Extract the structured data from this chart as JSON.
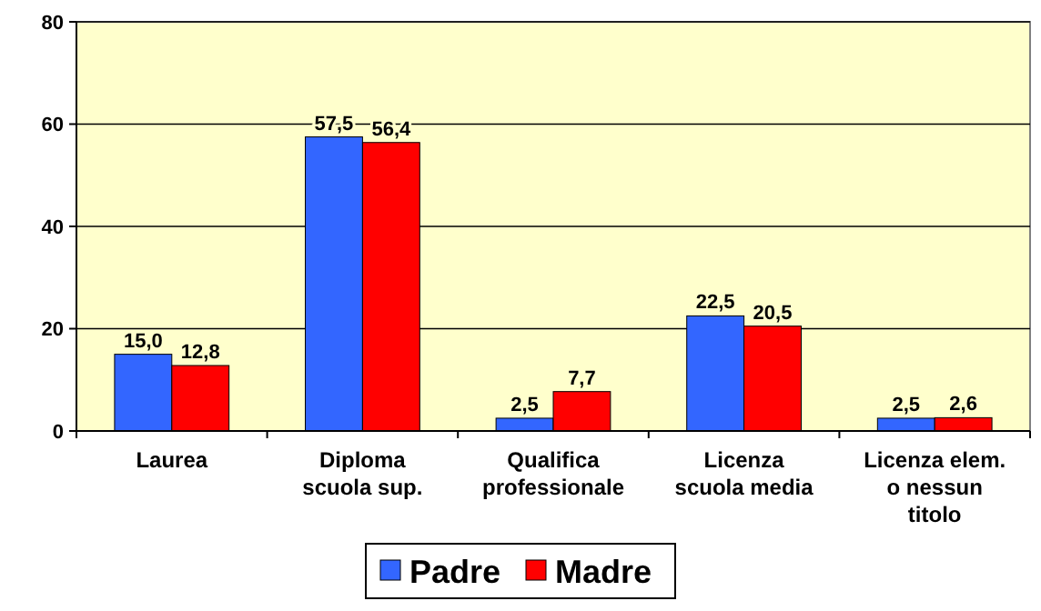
{
  "chart_data": {
    "type": "bar",
    "categories": [
      "Laurea",
      "Diploma\nscuola sup.",
      "Qualifica\nprofessionale",
      "Licenza\nscuola media",
      "Licenza elem.\no nessun\ntitolo"
    ],
    "series": [
      {
        "name": "Padre",
        "color": "#3366ff",
        "values": [
          15.0,
          57.5,
          2.5,
          22.5,
          2.5
        ],
        "value_labels": [
          "15,0",
          "57,5",
          "2,5",
          "22,5",
          "2,5"
        ]
      },
      {
        "name": "Madre",
        "color": "#ff0000",
        "values": [
          12.8,
          56.4,
          7.7,
          20.5,
          2.6
        ],
        "value_labels": [
          "12,8",
          "56,4",
          "7,7",
          "20,5",
          "2,6"
        ]
      }
    ],
    "ylim": [
      0,
      80
    ],
    "yticks": [
      0,
      20,
      40,
      60,
      80
    ],
    "grid": "y",
    "legend": "bottom"
  }
}
